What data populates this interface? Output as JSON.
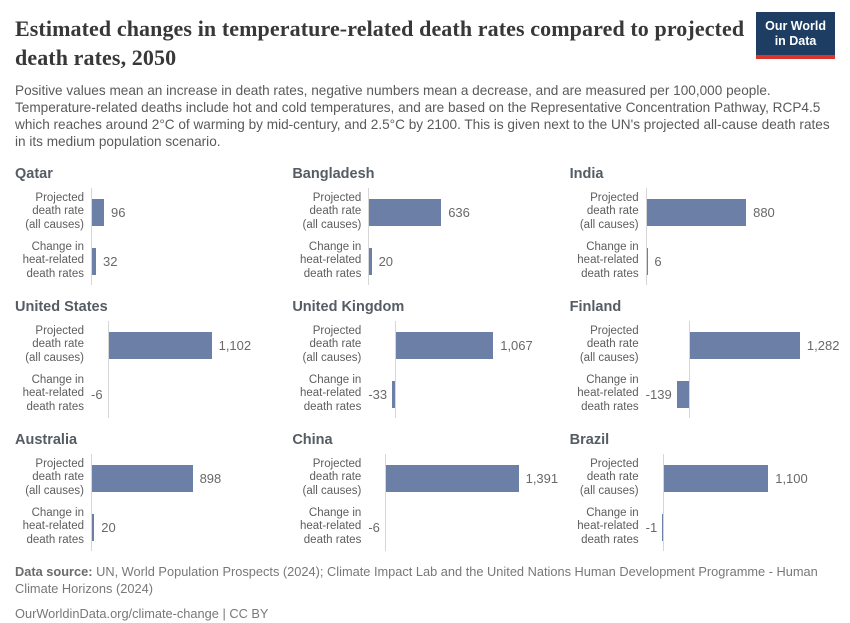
{
  "header": {
    "title": "Estimated changes in temperature-related death rates compared to projected death rates, 2050",
    "subtitle": "Positive values mean an increase in death rates, negative numbers mean a decrease, and are measured per 100,000 people. Temperature-related deaths include hot and cold temperatures, and are based on the Representative Concentration Pathway, RCP4.5 which reaches around 2°C of warming by mid-century, and 2.5°C by 2100. This is given next to the UN's projected all-cause death rates in its medium population scenario.",
    "logo": {
      "line1": "Our World",
      "line2": "in Data",
      "bg_color": "#1d3d63",
      "accent_color": "#d8352c"
    }
  },
  "chart_data": {
    "type": "bar",
    "layout": "small-multiples-3x3, horizontal bars",
    "bar_color": "#6c80a7",
    "axis_color": "#d6d6d6",
    "unit": "per 100,000 people",
    "year": "2050",
    "categories": [
      "Projected death rate (all causes)",
      "Change in heat-related death rates"
    ],
    "category_lines": [
      [
        "Projected",
        "death rate",
        "(all causes)"
      ],
      [
        "Change in",
        "heat-related",
        "death rates"
      ]
    ],
    "facets": [
      {
        "country": "Qatar",
        "values": [
          96,
          32
        ],
        "labels": [
          "96",
          "32"
        ],
        "scale": 0.125
      },
      {
        "country": "Bangladesh",
        "values": [
          636,
          20
        ],
        "labels": [
          "636",
          "20"
        ],
        "scale": 0.113
      },
      {
        "country": "India",
        "values": [
          880,
          6
        ],
        "labels": [
          "880",
          "6"
        ],
        "scale": 0.113
      },
      {
        "country": "United States",
        "values": [
          1102,
          -6
        ],
        "labels": [
          "1,102",
          "-6"
        ],
        "scale": 0.093
      },
      {
        "country": "United Kingdom",
        "values": [
          1067,
          -33
        ],
        "labels": [
          "1,067",
          "-33"
        ],
        "scale": 0.091
      },
      {
        "country": "Finland",
        "values": [
          1282,
          -139
        ],
        "labels": [
          "1,282",
          "-139"
        ],
        "scale": 0.086
      },
      {
        "country": "Australia",
        "values": [
          898,
          20
        ],
        "labels": [
          "898",
          "20"
        ],
        "scale": 0.112
      },
      {
        "country": "China",
        "values": [
          1391,
          -6
        ],
        "labels": [
          "1,391",
          "-6"
        ],
        "scale": 0.095
      },
      {
        "country": "Brazil",
        "values": [
          1100,
          -1
        ],
        "labels": [
          "1,100",
          "-1"
        ],
        "scale": 0.095
      }
    ]
  },
  "footer": {
    "source_label": "Data source:",
    "source_text": " UN, World Population Prospects (2024); Climate Impact Lab and the United Nations Human Development Programme - Human Climate Horizons (2024)",
    "license_line": "OurWorldinData.org/climate-change | CC BY"
  }
}
